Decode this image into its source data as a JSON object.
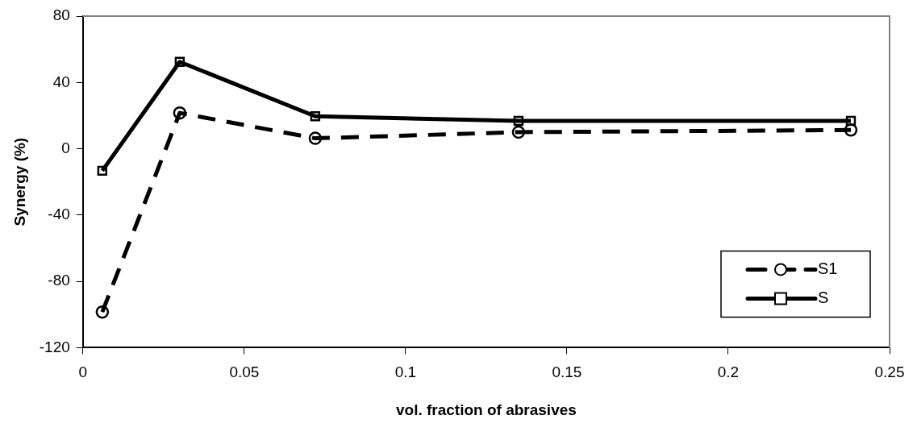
{
  "chart_data": {
    "type": "line",
    "xlabel": "vol. fraction of abrasives",
    "ylabel": "Synergy (%)",
    "x": [
      0.006,
      0.03,
      0.072,
      0.135,
      0.238
    ],
    "series": [
      {
        "name": "S1",
        "color": "#000000",
        "marker": "circle",
        "line_style": "dashed",
        "values": [
          -98.5,
          21.6,
          6.3,
          10.0,
          11.3
        ]
      },
      {
        "name": "S",
        "color": "#000000",
        "marker": "square",
        "line_style": "solid",
        "values": [
          -13.3,
          52.4,
          19.6,
          16.8,
          16.8
        ]
      }
    ],
    "xlim": [
      0,
      0.25
    ],
    "xticks": [
      0,
      0.05,
      0.1,
      0.15,
      0.2,
      0.25
    ],
    "ylim": [
      -120,
      80
    ],
    "yticks": [
      -120,
      -80,
      -40,
      0,
      40,
      80
    ],
    "grid": false,
    "legend": "bottom right"
  }
}
